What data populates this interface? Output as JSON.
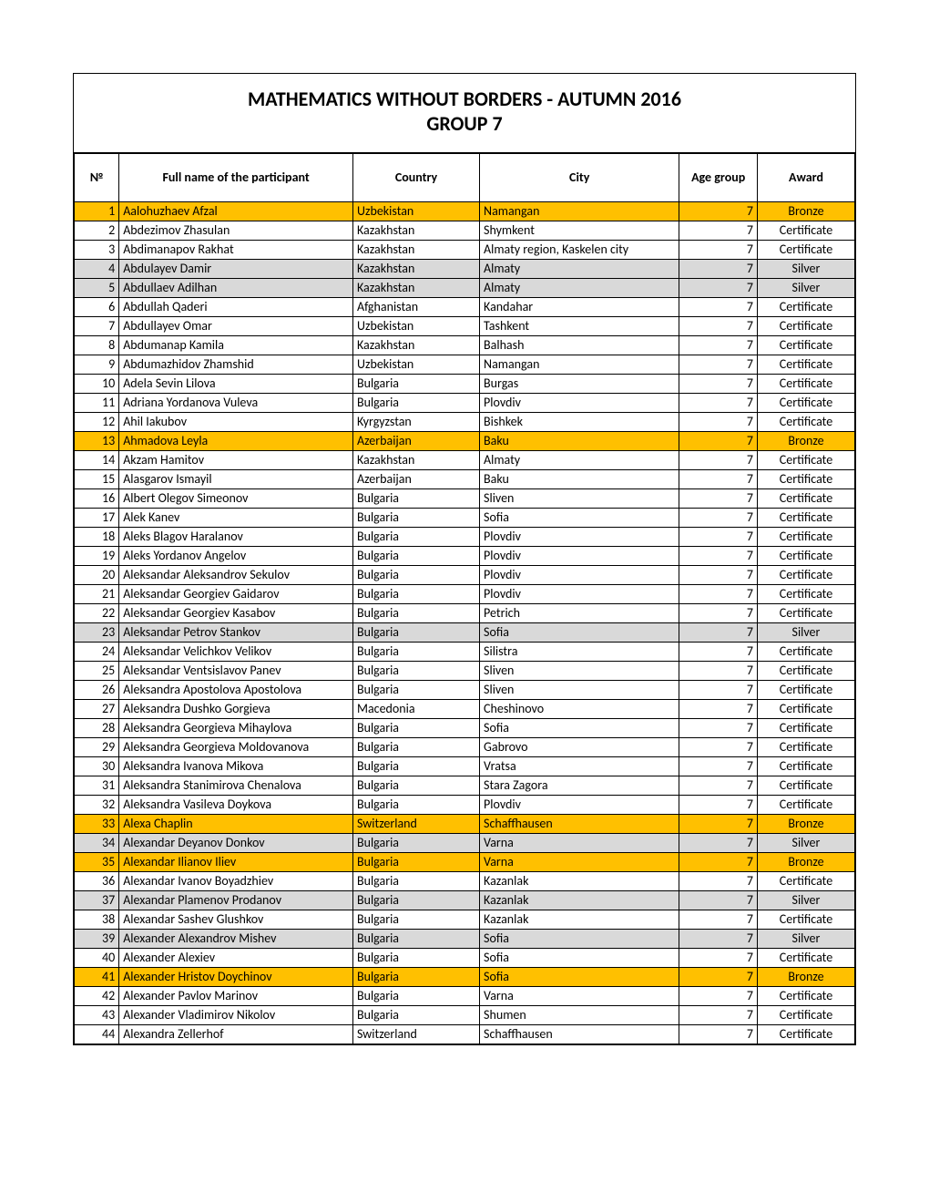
{
  "title_line1": "MATHEMATICS WITHOUT BORDERS - AUTUMN 2016",
  "title_line2": "GROUP 7",
  "columns": [
    "№",
    "Full name of the participant",
    "Country",
    "City",
    "Age group",
    "Award"
  ],
  "row_colors": {
    "Bronze": "#ffc000",
    "Silver": "#d9d9d9",
    "Certificate": "#ffffff"
  },
  "font_family": "Calibri",
  "title_fontsize": 22,
  "cell_fontsize": 14,
  "rows": [
    {
      "n": 1,
      "name": "Aalohuzhaev Afzal",
      "country": "Uzbekistan",
      "city": "Namangan",
      "age": 7,
      "award": "Bronze"
    },
    {
      "n": 2,
      "name": "Abdezimov Zhasulan",
      "country": "Kazakhstan",
      "city": "Shymkent",
      "age": 7,
      "award": "Certificate"
    },
    {
      "n": 3,
      "name": "Abdimanapov Rakhat",
      "country": "Kazakhstan",
      "city": "Almaty region, Kaskelen city",
      "age": 7,
      "award": "Certificate"
    },
    {
      "n": 4,
      "name": "Abdulayev Damir",
      "country": "Kazakhstan",
      "city": "Almaty",
      "age": 7,
      "award": "Silver"
    },
    {
      "n": 5,
      "name": "Abdullaev Adilhan",
      "country": "Kazakhstan",
      "city": "Almaty",
      "age": 7,
      "award": "Silver"
    },
    {
      "n": 6,
      "name": "Abdullah Qaderi",
      "country": "Afghanistan",
      "city": "Kandahar",
      "age": 7,
      "award": "Certificate"
    },
    {
      "n": 7,
      "name": "Abdullayev Omar",
      "country": "Uzbekistan",
      "city": "Tashkent",
      "age": 7,
      "award": "Certificate"
    },
    {
      "n": 8,
      "name": "Abdumanap Kamila",
      "country": "Kazakhstan",
      "city": "Balhash",
      "age": 7,
      "award": "Certificate"
    },
    {
      "n": 9,
      "name": "Abdumazhidov Zhamshid",
      "country": "Uzbekistan",
      "city": "Namangan",
      "age": 7,
      "award": "Certificate"
    },
    {
      "n": 10,
      "name": "Adela Sevin Lilova",
      "country": "Bulgaria",
      "city": "Burgas",
      "age": 7,
      "award": "Certificate"
    },
    {
      "n": 11,
      "name": "Adriana Yordanova Vuleva",
      "country": "Bulgaria",
      "city": "Plovdiv",
      "age": 7,
      "award": "Certificate"
    },
    {
      "n": 12,
      "name": "Ahil Iakubov",
      "country": "Kyrgyzstan",
      "city": "Bishkek",
      "age": 7,
      "award": "Certificate"
    },
    {
      "n": 13,
      "name": "Ahmadova Leyla",
      "country": "Azerbaijan",
      "city": "Baku",
      "age": 7,
      "award": "Bronze"
    },
    {
      "n": 14,
      "name": "Akzam Hamitov",
      "country": "Kazakhstan",
      "city": "Almaty",
      "age": 7,
      "award": "Certificate"
    },
    {
      "n": 15,
      "name": "Alasgarov Ismayil",
      "country": "Azerbaijan",
      "city": "Baku",
      "age": 7,
      "award": "Certificate"
    },
    {
      "n": 16,
      "name": "Albert Olegov Simeonov",
      "country": "Bulgaria",
      "city": "Sliven",
      "age": 7,
      "award": "Certificate"
    },
    {
      "n": 17,
      "name": "Alek Kanev",
      "country": "Bulgaria",
      "city": "Sofia",
      "age": 7,
      "award": "Certificate"
    },
    {
      "n": 18,
      "name": "Aleks Blagov Haralanov",
      "country": "Bulgaria",
      "city": "Plovdiv",
      "age": 7,
      "award": "Certificate"
    },
    {
      "n": 19,
      "name": "Aleks Yordanov Angelov",
      "country": "Bulgaria",
      "city": "Plovdiv",
      "age": 7,
      "award": "Certificate"
    },
    {
      "n": 20,
      "name": "Aleksandar Aleksandrov Sekulov",
      "country": "Bulgaria",
      "city": "Plovdiv",
      "age": 7,
      "award": "Certificate"
    },
    {
      "n": 21,
      "name": "Aleksandar Georgiev Gaidarov",
      "country": "Bulgaria",
      "city": "Plovdiv",
      "age": 7,
      "award": "Certificate"
    },
    {
      "n": 22,
      "name": "Aleksandar Georgiev Kasabov",
      "country": "Bulgaria",
      "city": "Petrich",
      "age": 7,
      "award": "Certificate"
    },
    {
      "n": 23,
      "name": "Aleksandar Petrov Stankov",
      "country": "Bulgaria",
      "city": "Sofia",
      "age": 7,
      "award": "Silver"
    },
    {
      "n": 24,
      "name": "Aleksandar Velichkov Velikov",
      "country": "Bulgaria",
      "city": "Silistra",
      "age": 7,
      "award": "Certificate"
    },
    {
      "n": 25,
      "name": "Aleksandar Ventsislavov Panev",
      "country": "Bulgaria",
      "city": "Sliven",
      "age": 7,
      "award": "Certificate"
    },
    {
      "n": 26,
      "name": "Aleksandra Apostolova Apostolova",
      "country": "Bulgaria",
      "city": "Sliven",
      "age": 7,
      "award": "Certificate"
    },
    {
      "n": 27,
      "name": "Aleksandra Dushko Gorgieva",
      "country": "Macedonia",
      "city": "Cheshinovo",
      "age": 7,
      "award": "Certificate"
    },
    {
      "n": 28,
      "name": "Aleksandra Georgieva Mihaylova",
      "country": "Bulgaria",
      "city": "Sofia",
      "age": 7,
      "award": "Certificate"
    },
    {
      "n": 29,
      "name": "Aleksandra Georgieva Moldovanova",
      "country": "Bulgaria",
      "city": "Gabrovo",
      "age": 7,
      "award": "Certificate"
    },
    {
      "n": 30,
      "name": "Aleksandra Ivanova Mikova",
      "country": "Bulgaria",
      "city": "Vratsa",
      "age": 7,
      "award": "Certificate"
    },
    {
      "n": 31,
      "name": "Aleksandra Stanimirova Chenalova",
      "country": "Bulgaria",
      "city": "Stara Zagora",
      "age": 7,
      "award": "Certificate"
    },
    {
      "n": 32,
      "name": "Aleksandra Vasileva Doykova",
      "country": "Bulgaria",
      "city": "Plovdiv",
      "age": 7,
      "award": "Certificate"
    },
    {
      "n": 33,
      "name": "Alexa Chaplin",
      "country": "Switzerland",
      "city": "Schaffhausen",
      "age": 7,
      "award": "Bronze"
    },
    {
      "n": 34,
      "name": "Alexandar Deyanov Donkov",
      "country": "Bulgaria",
      "city": "Varna",
      "age": 7,
      "award": "Silver"
    },
    {
      "n": 35,
      "name": "Alexandar Ilianov Iliev",
      "country": "Bulgaria",
      "city": "Varna",
      "age": 7,
      "award": "Bronze"
    },
    {
      "n": 36,
      "name": "Alexandar Ivanov Boyadzhiev",
      "country": "Bulgaria",
      "city": "Kazanlak",
      "age": 7,
      "award": "Certificate"
    },
    {
      "n": 37,
      "name": "Alexandar Plamenov Prodanov",
      "country": "Bulgaria",
      "city": "Kazanlak",
      "age": 7,
      "award": "Silver"
    },
    {
      "n": 38,
      "name": "Alexandar Sashev Glushkov",
      "country": "Bulgaria",
      "city": "Kazanlak",
      "age": 7,
      "award": "Certificate"
    },
    {
      "n": 39,
      "name": "Alexander Alexandrov Mishev",
      "country": "Bulgaria",
      "city": "Sofia",
      "age": 7,
      "award": "Silver"
    },
    {
      "n": 40,
      "name": "Alexander Alexiev",
      "country": "Bulgaria",
      "city": "Sofia",
      "age": 7,
      "award": "Certificate"
    },
    {
      "n": 41,
      "name": "Alexander Hristov Doychinov",
      "country": "Bulgaria",
      "city": "Sofia",
      "age": 7,
      "award": "Bronze"
    },
    {
      "n": 42,
      "name": "Alexander Pavlov Marinov",
      "country": "Bulgaria",
      "city": "Varna",
      "age": 7,
      "award": "Certificate"
    },
    {
      "n": 43,
      "name": "Alexander Vladimirov Nikolov",
      "country": "Bulgaria",
      "city": "Shumen",
      "age": 7,
      "award": "Certificate"
    },
    {
      "n": 44,
      "name": "Alexandra Zellerhof",
      "country": "Switzerland",
      "city": "Schaffhausen",
      "age": 7,
      "award": "Certificate"
    }
  ]
}
